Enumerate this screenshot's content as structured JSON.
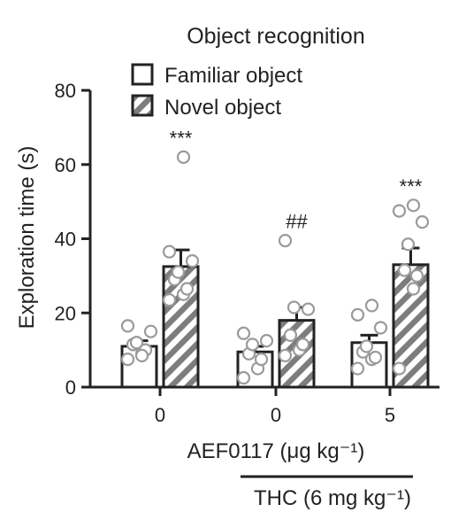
{
  "chart_data": {
    "type": "bar",
    "title": "Object recognition",
    "ylabel": "Exploration time (s)",
    "ylim": [
      0,
      80
    ],
    "yticks": [
      0,
      20,
      40,
      60,
      80
    ],
    "categories": [
      "0",
      "0",
      "5"
    ],
    "series": [
      {
        "name": "Familiar object",
        "values": [
          11,
          9.5,
          12
        ],
        "errors": [
          1.5,
          1.5,
          2
        ],
        "points": [
          [
            7.5,
            9,
            10,
            11.5,
            12,
            15,
            16.5,
            8.5
          ],
          [
            2.5,
            5,
            7.5,
            9,
            11.5,
            12.5,
            14.5
          ],
          [
            5,
            7.5,
            8,
            9.5,
            11,
            16,
            19.5,
            22
          ]
        ]
      },
      {
        "name": "Novel object",
        "values": [
          32.5,
          18,
          33
        ],
        "errors": [
          4.5,
          3.5,
          4.5
        ],
        "points": [
          [
            23.5,
            25,
            26.5,
            29,
            31,
            34,
            36.5,
            62
          ],
          [
            8.5,
            10,
            11.5,
            14,
            21.5,
            21,
            39.5
          ],
          [
            5,
            26.5,
            30,
            31.5,
            38.5,
            44.5,
            47.5,
            49
          ]
        ]
      }
    ],
    "significance": [
      "***",
      "##",
      "***"
    ],
    "xlabel": "AEF0117 (μg kg⁻¹)",
    "treatment_label": "THC (6 mg kg⁻¹)",
    "legend_position": "top"
  }
}
